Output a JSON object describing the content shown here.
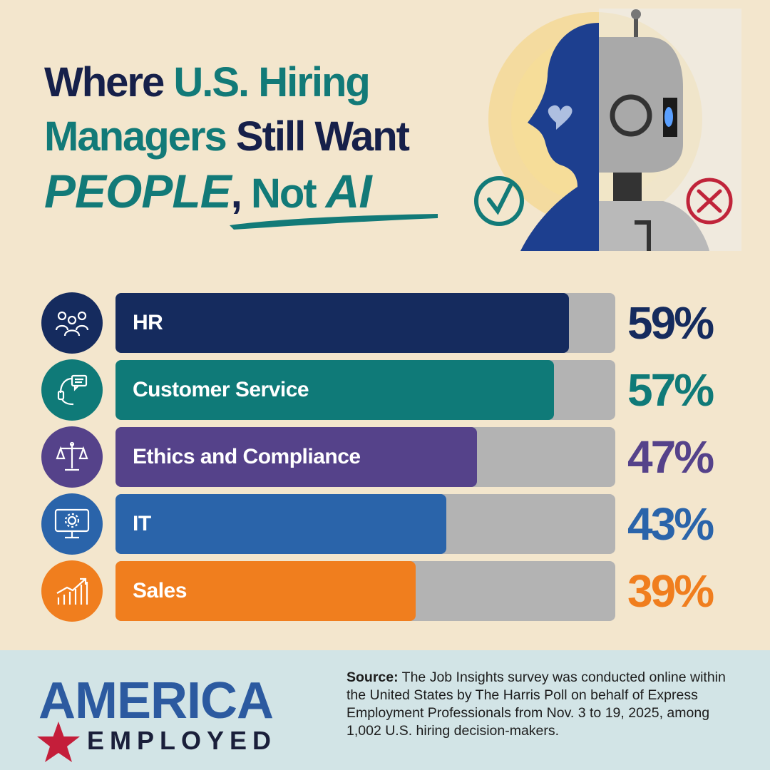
{
  "title": {
    "line1_a": "Where ",
    "line1_b": "U.S. Hiring",
    "line2_a": "Managers",
    "line2_b": " Still Want",
    "line3_a": "PEOPLE",
    "line3_b": ", ",
    "line3_c": "Not ",
    "line3_d": "AI"
  },
  "colors": {
    "navy": "#16204a",
    "teal": "#127a78",
    "track": "#b3b3b3",
    "background": "#f3e6cd",
    "footer": "#d2e4e6"
  },
  "chart_data": {
    "type": "bar",
    "orientation": "horizontal",
    "categories": [
      "HR",
      "Customer Service",
      "Ethics and Compliance",
      "IT",
      "Sales"
    ],
    "values": [
      59,
      57,
      47,
      43,
      39
    ],
    "value_labels": [
      "59%",
      "57%",
      "47%",
      "43%",
      "39%"
    ],
    "unit": "%",
    "xlim": [
      0,
      65
    ],
    "bar_colors": [
      "#152b5e",
      "#0f7a78",
      "#55428a",
      "#2a64aa",
      "#f07e1e"
    ],
    "icons": [
      "people-group-icon",
      "headset-chat-icon",
      "scales-of-justice-icon",
      "monitor-gear-icon",
      "growth-chart-icon"
    ],
    "grid": false,
    "legend": "none"
  },
  "footer": {
    "logo_word": "AMERICA",
    "logo_sub": "EMPLOYED",
    "source_label": "Source:",
    "source_text": " The Job Insights survey was conducted online within the United States by The Harris Poll on behalf of Express Employment Professionals from Nov. 3 to 19, 2025, among 1,002 U.S. hiring decision-makers."
  }
}
